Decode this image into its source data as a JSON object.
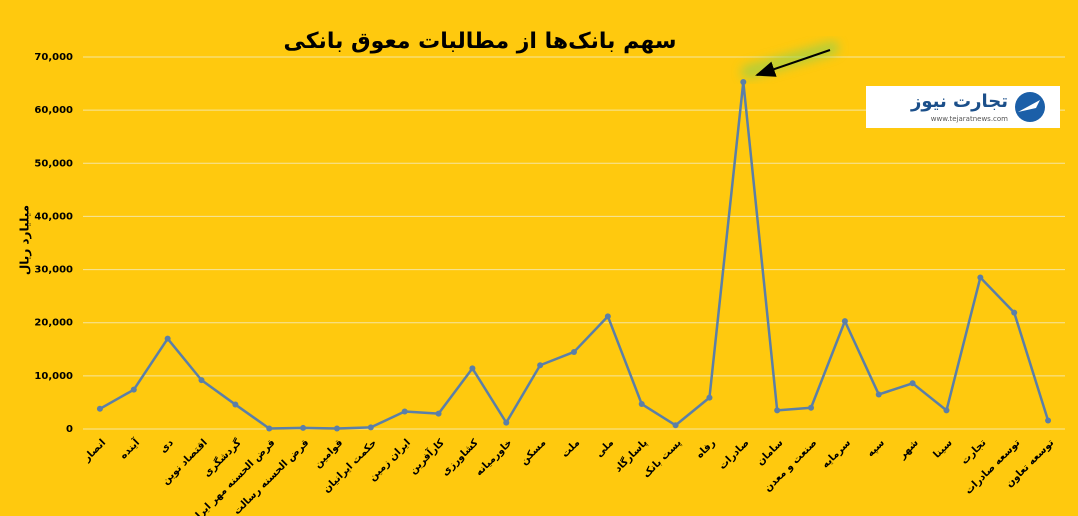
{
  "chart_data": {
    "type": "line",
    "title": "سهم بانک‌ها از مطالبات معوق بانکی",
    "y_label": "میلیارد ریال",
    "categories": [
      "انصار",
      "آینده",
      "دی",
      "اقتصاد نوین",
      "گردشگری",
      "قرض الحسنه مهر ایران",
      "قرض الحسنه رسالت",
      "قوامین",
      "حکمت ایرانیان",
      "ایران زمین",
      "کارآفرین",
      "کشاورزی",
      "خاورمیانه",
      "مسکن",
      "ملت",
      "ملی",
      "پاسارگاد",
      "پست بانک",
      "رفاه",
      "صادرات",
      "سامان",
      "صنعت و معدن",
      "سرمایه",
      "سپه",
      "شهر",
      "سینا",
      "تجارت",
      "توسعه صادرات",
      "توسعه تعاون"
    ],
    "series": [
      {
        "name": "میلیارد ریال",
        "color": "#5b7fa8",
        "values": [
          3800,
          7400,
          17000,
          9200,
          4600,
          100,
          200,
          100,
          300,
          3300,
          2900,
          11400,
          1200,
          12000,
          14500,
          21200,
          4700,
          700,
          5900,
          65300,
          3500,
          4000,
          20300,
          6500,
          8600,
          3500,
          28500,
          21900,
          1600
        ]
      }
    ],
    "ylim": [
      0,
      70000
    ],
    "yticks": [
      0,
      {
        "value": 10000,
        "label": "10,000"
      },
      {
        "value": 20000,
        "label": "20,000"
      },
      {
        "value": 30000,
        "label": "30,000"
      },
      {
        "value": 40000,
        "label": "40,000"
      },
      {
        "value": 50000,
        "label": "50,000"
      },
      {
        "value": 60000,
        "label": "60,000"
      },
      {
        "value": 70000,
        "label": "70,000"
      }
    ],
    "grid": true
  },
  "logo": {
    "name": "تجارت نیوز",
    "url": "www.tejaratnews.com"
  }
}
